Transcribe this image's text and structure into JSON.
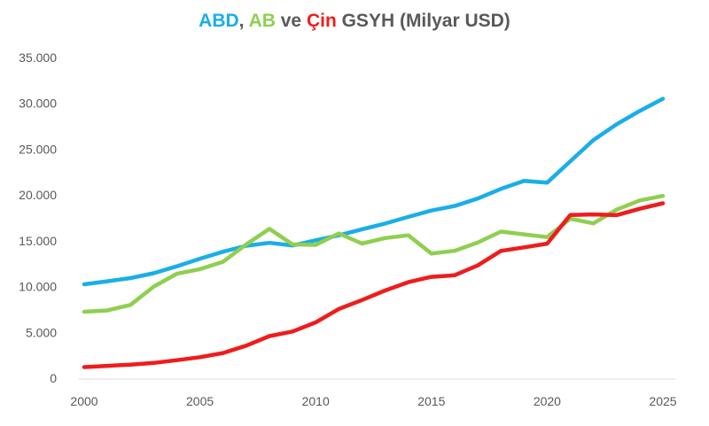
{
  "chart_data": {
    "type": "line",
    "title_parts": [
      {
        "text": "ABD",
        "color": "#1aaee8"
      },
      {
        "text": ", ",
        "color": "#595959"
      },
      {
        "text": "AB",
        "color": "#8fcf50"
      },
      {
        "text": " ve ",
        "color": "#595959"
      },
      {
        "text": "Çin",
        "color": "#ef1c1c"
      },
      {
        "text": " GSYH (Milyar USD)",
        "color": "#595959"
      }
    ],
    "x": [
      2000,
      2001,
      2002,
      2003,
      2004,
      2005,
      2006,
      2007,
      2008,
      2009,
      2010,
      2011,
      2012,
      2013,
      2014,
      2015,
      2016,
      2017,
      2018,
      2019,
      2020,
      2021,
      2022,
      2023,
      2024,
      2025
    ],
    "series": [
      {
        "name": "ABD",
        "color": "#1aaee8",
        "values": [
          10250,
          10580,
          10930,
          11460,
          12210,
          13040,
          13810,
          14450,
          14770,
          14480,
          15050,
          15600,
          16250,
          16880,
          17610,
          18300,
          18800,
          19610,
          20660,
          21540,
          21350,
          23680,
          26000,
          27720,
          29180,
          30500
        ]
      },
      {
        "name": "AB",
        "color": "#8fcf50",
        "values": [
          7250,
          7400,
          8000,
          10000,
          11400,
          11900,
          12700,
          14600,
          16300,
          14600,
          14550,
          15800,
          14700,
          15300,
          15600,
          13600,
          13900,
          14800,
          16000,
          15700,
          15400,
          17400,
          16900,
          18400,
          19400,
          19900
        ]
      },
      {
        "name": "Çin",
        "color": "#ef1c1c",
        "values": [
          1210,
          1340,
          1470,
          1660,
          1960,
          2290,
          2750,
          3550,
          4590,
          5100,
          6090,
          7550,
          8530,
          9570,
          10480,
          11060,
          11230,
          12310,
          13890,
          14280,
          14690,
          17820,
          17880,
          17800,
          18500,
          19100
        ]
      }
    ],
    "y_ticks": [
      "0",
      "5.000",
      "10.000",
      "15.000",
      "20.000",
      "25.000",
      "30.000",
      "35.000"
    ],
    "x_ticks": [
      "2000",
      "2005",
      "2010",
      "2015",
      "2020",
      "2025"
    ],
    "ylim": [
      0,
      35000
    ],
    "xlim": [
      2000,
      2025
    ],
    "grid": false,
    "legend": "none"
  }
}
